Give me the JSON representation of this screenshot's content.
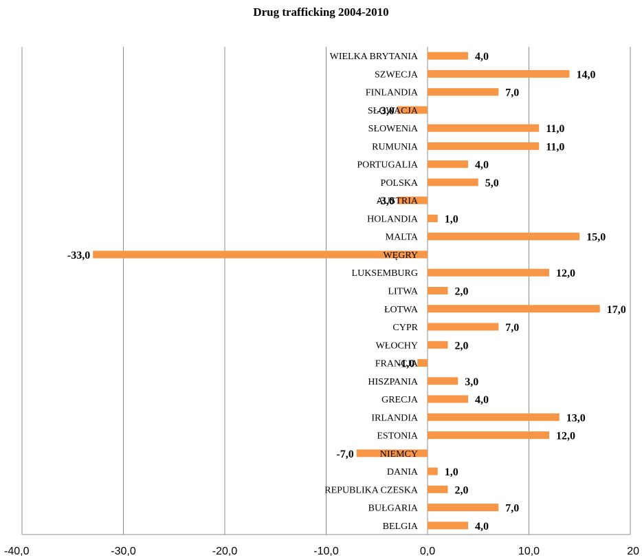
{
  "chart_data": {
    "type": "bar",
    "orientation": "horizontal",
    "title": "Drug trafficking 2004-2010",
    "categories": [
      "WIELKA BRYTANIA",
      "SZWECJA",
      "FINLANDIA",
      "SŁOWACJA",
      "SŁOWENiA",
      "RUMUNIA",
      "PORTUGALIA",
      "POLSKA",
      "AUSTRIA",
      "HOLANDIA",
      "MALTA",
      "WĘGRY",
      "LUKSEMBURG",
      "LITWA",
      "ŁOTWA",
      "CYPR",
      "WŁOCHY",
      "FRANCJA",
      "HISZPANIA",
      "GRECJA",
      "IRLANDIA",
      "ESTONIA",
      "NIEMCY",
      "DANIA",
      "REPUBLIKA CZESKA",
      "BUŁGARIA",
      "BELGIA"
    ],
    "values": [
      4.0,
      14.0,
      7.0,
      -3.0,
      11.0,
      11.0,
      4.0,
      5.0,
      -3.0,
      1.0,
      15.0,
      -33.0,
      12.0,
      2.0,
      17.0,
      7.0,
      2.0,
      -1.0,
      3.0,
      4.0,
      13.0,
      12.0,
      -7.0,
      1.0,
      2.0,
      7.0,
      4.0
    ],
    "value_labels": [
      "4,0",
      "14,0",
      "7,0",
      "-3,0",
      "11,0",
      "11,0",
      "4,0",
      "5,0",
      "-3,0",
      "1,0",
      "15,0",
      "-33,0",
      "12,0",
      "2,0",
      "17,0",
      "7,0",
      "2,0",
      "-1,0",
      "3,0",
      "4,0",
      "13,0",
      "12,0",
      "-7,0",
      "1,0",
      "2,0",
      "7,0",
      "4,0"
    ],
    "xlim": [
      -40,
      20
    ],
    "x_ticks": [
      -40,
      -30,
      -20,
      -10,
      0,
      10,
      20
    ],
    "x_tick_labels": [
      "-40,0",
      "-30,0",
      "-20,0",
      "-10,0",
      "0,0",
      "10,0",
      "20"
    ],
    "grid": "vertical",
    "bar_color": "#F79646",
    "grid_color": "#8c8c8c"
  }
}
